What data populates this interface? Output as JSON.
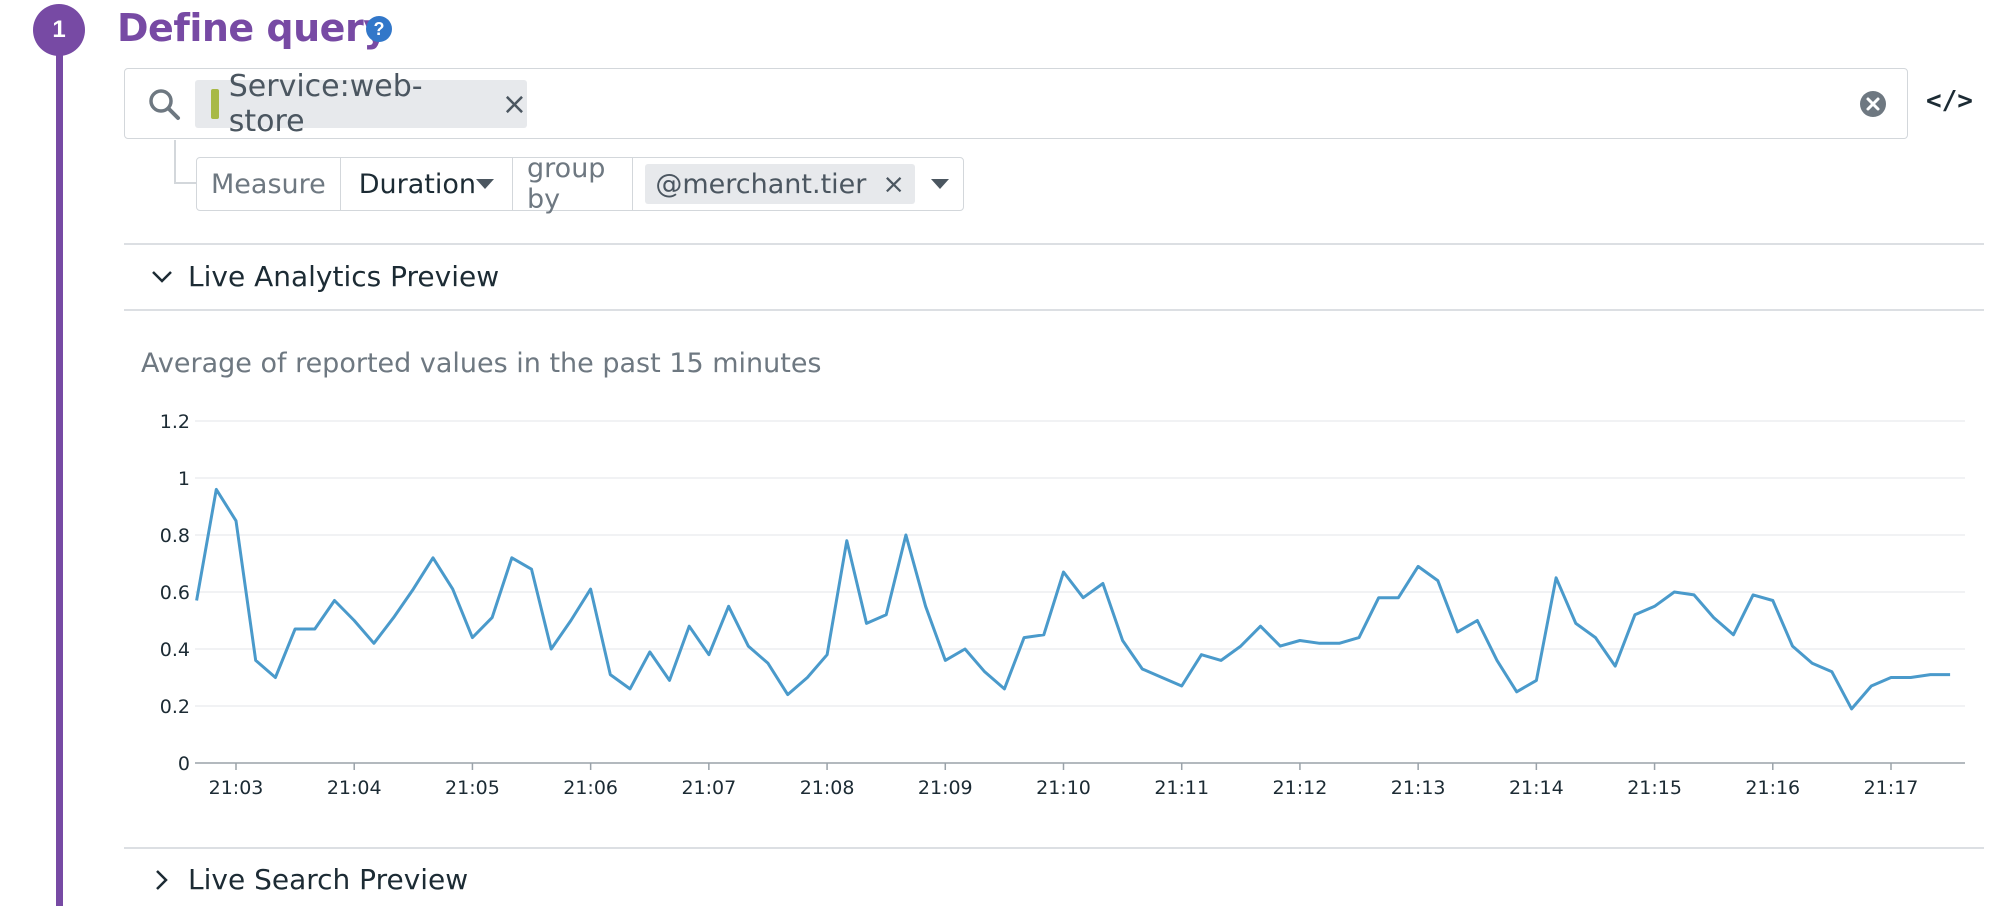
{
  "step": {
    "number": "1",
    "title": "Define query",
    "help_icon": "question-circle-icon"
  },
  "search": {
    "tag": "Service:web-store",
    "tag_remove": "×",
    "accent_color": "#a8b946"
  },
  "code_toggle": "</>",
  "measure": {
    "label": "Measure",
    "value": "Duration",
    "group_by_label": "group by",
    "group_tag": "@merchant.tier",
    "group_tag_remove": "×"
  },
  "sections": {
    "analytics": "Live Analytics Preview",
    "search": "Live Search Preview"
  },
  "chart_subtitle": "Average of reported values in the past 15 minutes",
  "colors": {
    "accent": "#774aa4",
    "line": "#4a9acb",
    "help": "#3277c9"
  },
  "chart_data": {
    "type": "line",
    "title": "",
    "xlabel": "",
    "ylabel": "",
    "ylim": [
      0,
      1.2
    ],
    "yticks": [
      "0",
      "0.2",
      "0.4",
      "0.6",
      "0.8",
      "1",
      "1.2"
    ],
    "xticks": [
      "21:03",
      "21:04",
      "21:05",
      "21:06",
      "21:07",
      "21:08",
      "21:09",
      "21:10",
      "21:11",
      "21:12",
      "21:13",
      "21:14",
      "21:15",
      "21:16",
      "21:17"
    ],
    "x_start": "21:02:40",
    "x_step_seconds": 10,
    "grid": true,
    "series": [
      {
        "values": [
          0.57,
          0.96,
          0.85,
          0.36,
          0.3,
          0.47,
          0.47,
          0.57,
          0.5,
          0.42,
          0.51,
          0.61,
          0.72,
          0.61,
          0.44,
          0.51,
          0.72,
          0.68,
          0.4,
          0.5,
          0.61,
          0.31,
          0.26,
          0.39,
          0.29,
          0.48,
          0.38,
          0.55,
          0.41,
          0.35,
          0.24,
          0.3,
          0.38,
          0.78,
          0.49,
          0.52,
          0.8,
          0.55,
          0.36,
          0.4,
          0.32,
          0.26,
          0.44,
          0.45,
          0.67,
          0.58,
          0.63,
          0.43,
          0.33,
          0.3,
          0.27,
          0.38,
          0.36,
          0.41,
          0.48,
          0.41,
          0.43,
          0.42,
          0.42,
          0.44,
          0.58,
          0.58,
          0.69,
          0.64,
          0.46,
          0.5,
          0.36,
          0.25,
          0.29,
          0.65,
          0.49,
          0.44,
          0.34,
          0.52,
          0.55,
          0.6,
          0.59,
          0.51,
          0.45,
          0.59,
          0.57,
          0.41,
          0.35,
          0.32,
          0.19,
          0.27,
          0.3,
          0.3,
          0.31,
          0.31
        ]
      }
    ]
  }
}
